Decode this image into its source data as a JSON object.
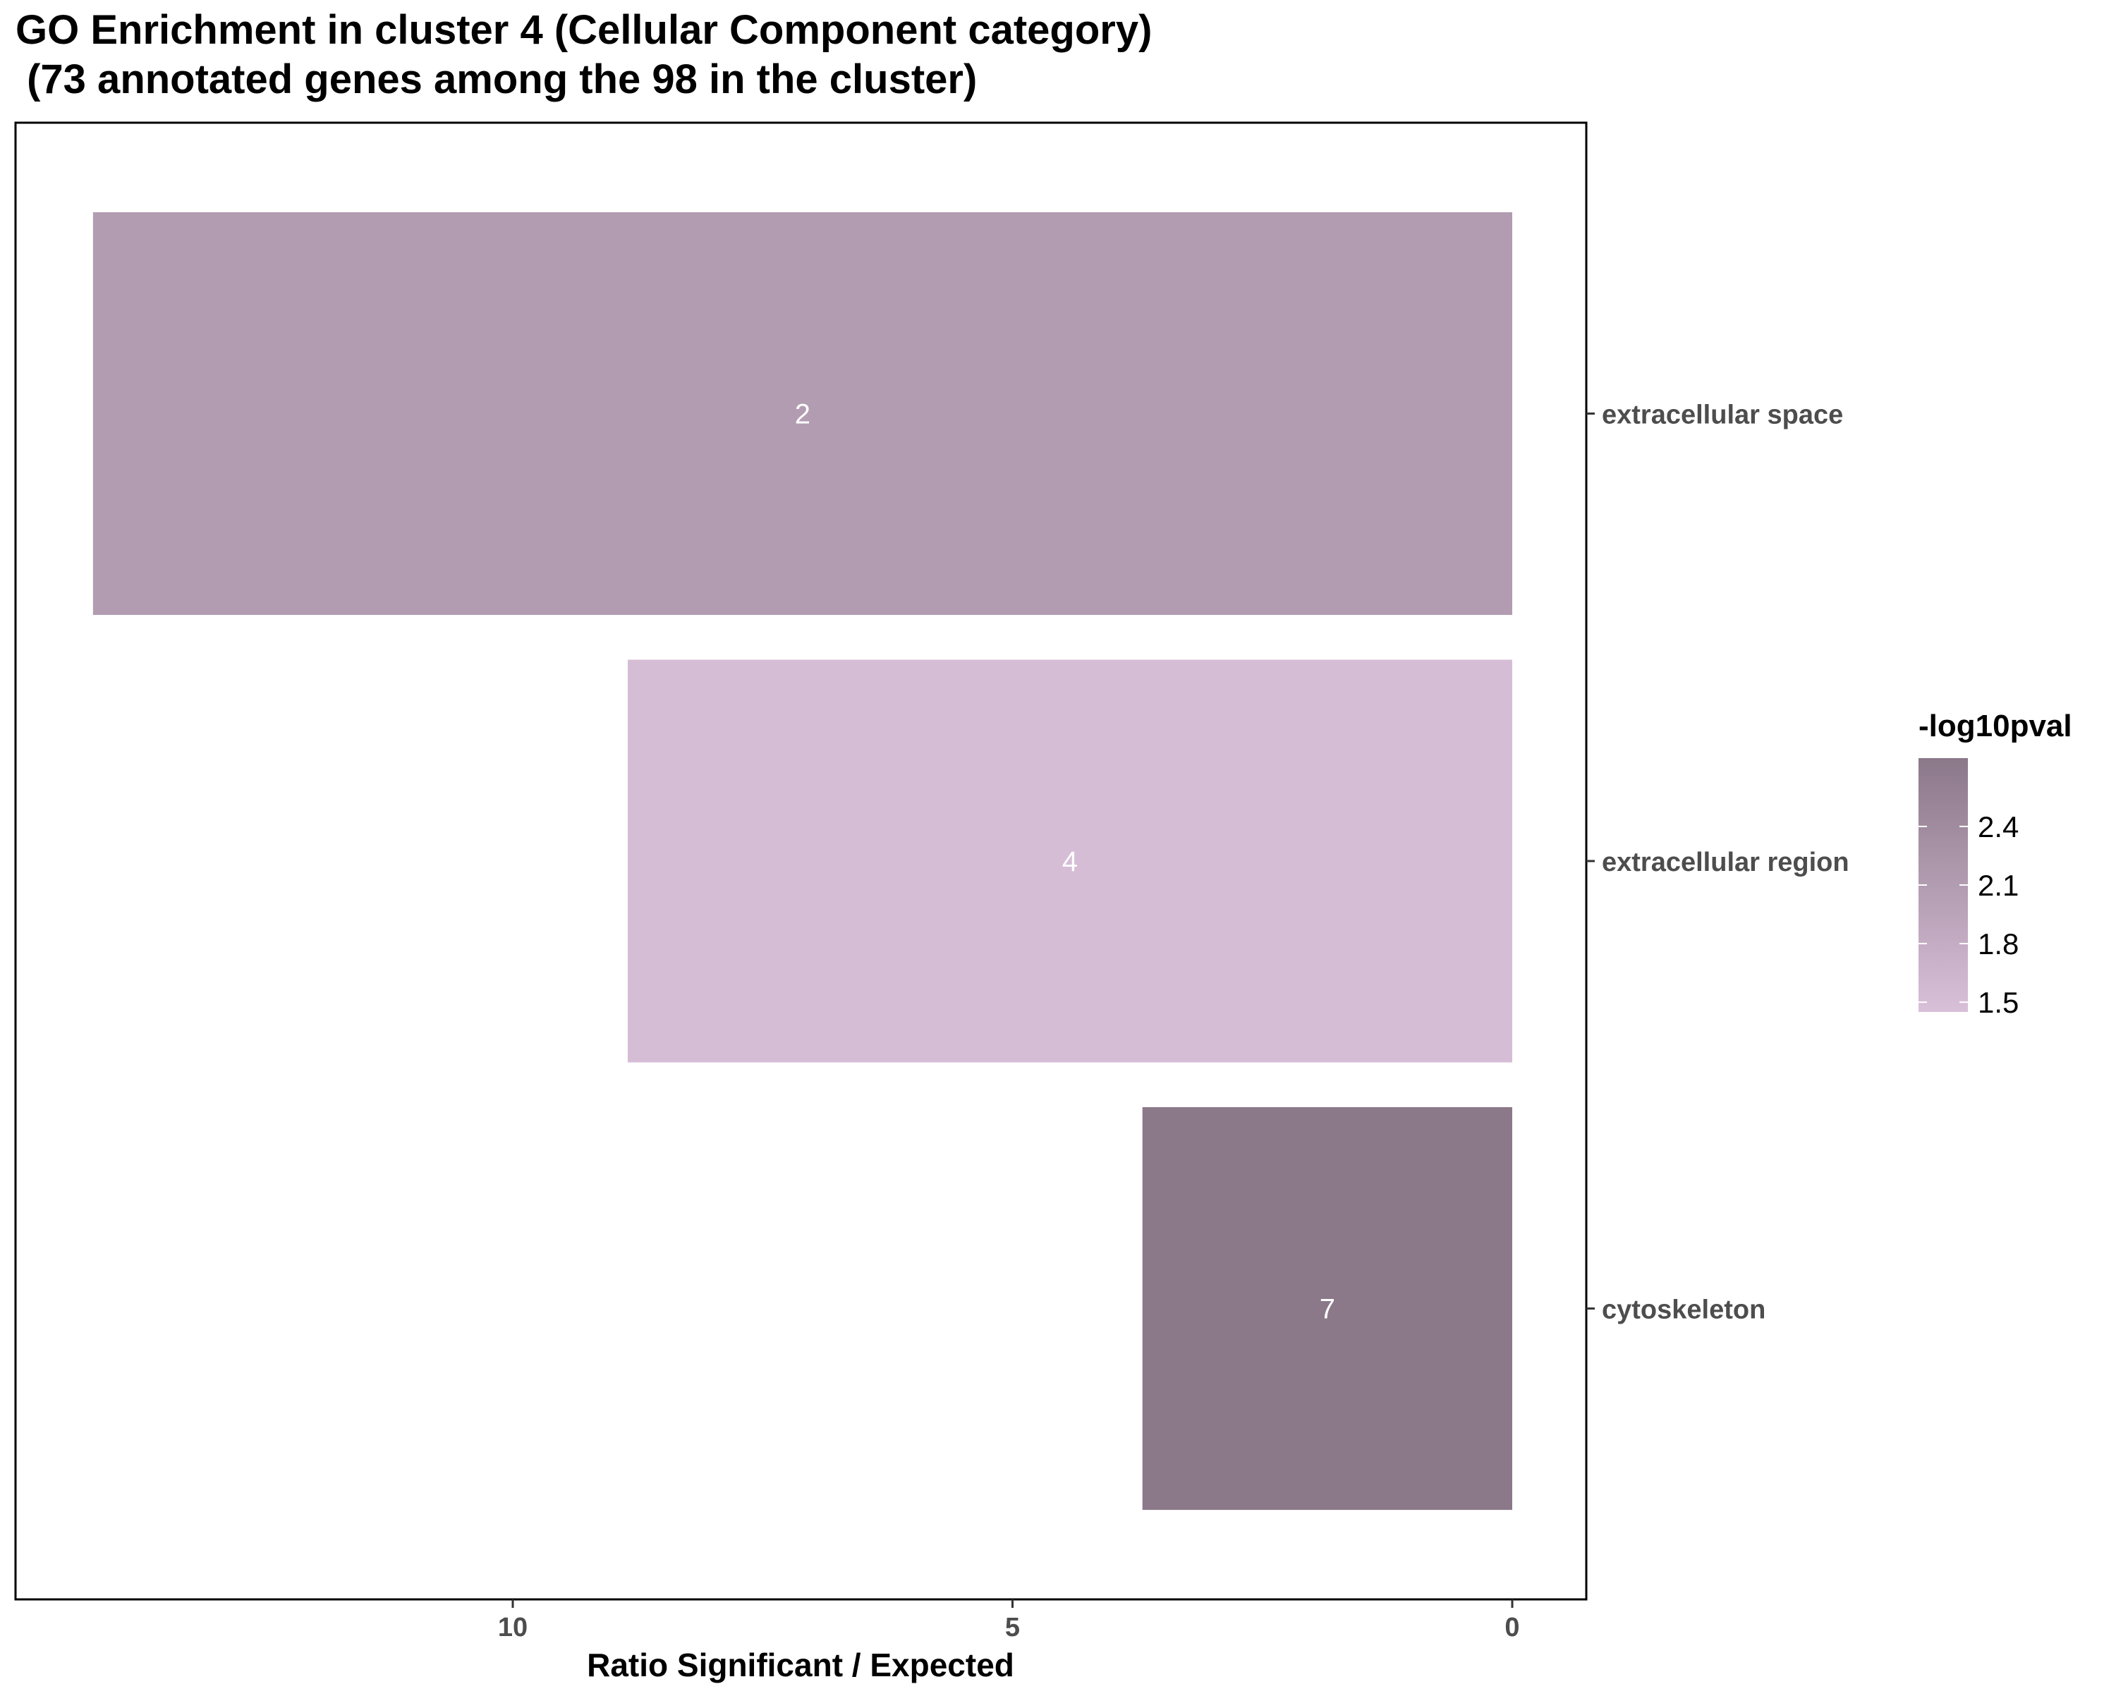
{
  "chart_data": {
    "type": "bar",
    "orientation": "horizontal",
    "title": "GO Enrichment in cluster 4 (Cellular Component category)",
    "subtitle": " (73 annotated genes among the 98 in the cluster)",
    "xlabel": "Ratio Significant / Expected",
    "ylabel": "",
    "x_reversed": true,
    "xlim": [
      0,
      14.6
    ],
    "x_ticks": [
      10,
      5,
      0
    ],
    "y_axis_position": "right",
    "grid": false,
    "categories": [
      "extracellular space",
      "extracellular region",
      "cytoskeleton"
    ],
    "series": [
      {
        "values": [
          14.2,
          8.85,
          3.7
        ],
        "labels": [
          "2",
          "4",
          "7"
        ],
        "color_values": [
          2.1,
          1.5,
          2.75
        ]
      }
    ],
    "legend": {
      "title": "-log10pval",
      "type": "colorbar",
      "placement": "right",
      "ticks": [
        2.4,
        2.1,
        1.8,
        1.5
      ],
      "range": [
        1.45,
        2.75
      ],
      "color_low": "#d9c0d9",
      "color_high": "#8b7889"
    }
  }
}
